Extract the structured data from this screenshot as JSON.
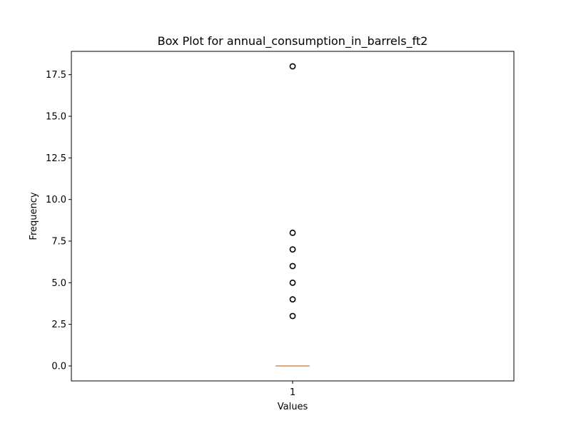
{
  "chart_data": {
    "type": "box",
    "title": "Box Plot for annual_consumption_in_barrels_ft2",
    "xlabel": "Values",
    "ylabel": "Frequency",
    "categories": [
      "1"
    ],
    "ylim": [
      -0.9,
      18.9
    ],
    "yticks": [
      0.0,
      2.5,
      5.0,
      7.5,
      10.0,
      12.5,
      15.0,
      17.5
    ],
    "ytick_labels": [
      "0.0",
      "2.5",
      "5.0",
      "7.5",
      "10.0",
      "12.5",
      "15.0",
      "17.5"
    ],
    "box": {
      "whisker_low": 0,
      "q1": 0,
      "median": 0,
      "q3": 0,
      "whisker_high": 0
    },
    "outliers": [
      3,
      4,
      5,
      6,
      7,
      8,
      18
    ],
    "grid": false,
    "colors": {
      "box": "#000000",
      "median": "#d98a4e",
      "outlier": "#000000"
    }
  }
}
